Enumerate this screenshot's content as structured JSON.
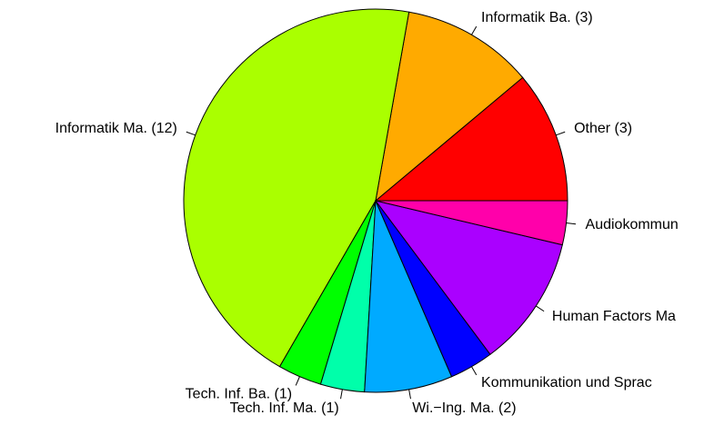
{
  "chart_data": {
    "type": "pie",
    "categories": [
      "Other (3)",
      "Informatik Ba. (3)",
      "Informatik Ma. (12)",
      "Tech. Inf. Ba. (1)",
      "Tech. Inf. Ma. (1)",
      "Wi.−Ing. Ma. (2)",
      "Kommunikation und Sprac",
      "Human Factors Ma",
      "Audiokommun"
    ],
    "values": [
      3,
      3,
      12,
      1,
      1,
      2,
      1,
      3,
      1
    ],
    "colors": [
      "#FF0000",
      "#FFAA00",
      "#AAFF00",
      "#00FF00",
      "#00FFAA",
      "#00AAFF",
      "#0000FF",
      "#AA00FF",
      "#FF00AA"
    ]
  }
}
